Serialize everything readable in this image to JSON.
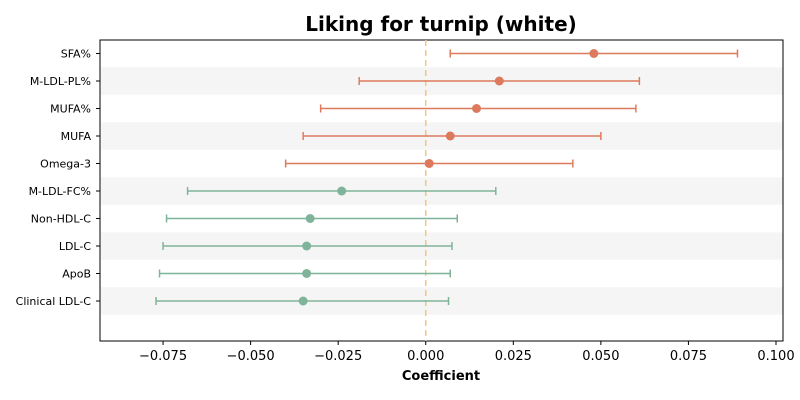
{
  "chart_data": {
    "type": "forest",
    "title": "Liking for turnip (white)",
    "xlabel": "Coefficient",
    "xlim": [
      -0.093,
      0.102
    ],
    "xticks": [
      -0.075,
      -0.05,
      -0.025,
      0.0,
      0.025,
      0.05,
      0.075,
      0.1
    ],
    "xtick_labels": [
      "−0.075",
      "−0.050",
      "−0.025",
      "0.000",
      "0.025",
      "0.050",
      "0.075",
      "0.100"
    ],
    "reference_line": 0.0,
    "colors": {
      "positive": "#dd7a5d",
      "negative": "#7fb49a",
      "reference": "#f4c77e",
      "band": "#f5f5f5"
    },
    "rows": [
      {
        "label": "SFA%",
        "estimate": 0.048,
        "lower": 0.007,
        "upper": 0.089
      },
      {
        "label": "M-LDL-PL%",
        "estimate": 0.021,
        "lower": -0.019,
        "upper": 0.061
      },
      {
        "label": "MUFA%",
        "estimate": 0.0145,
        "lower": -0.03,
        "upper": 0.06
      },
      {
        "label": "MUFA",
        "estimate": 0.007,
        "lower": -0.035,
        "upper": 0.05
      },
      {
        "label": "Omega-3",
        "estimate": 0.001,
        "lower": -0.04,
        "upper": 0.042
      },
      {
        "label": "M-LDL-FC%",
        "estimate": -0.024,
        "lower": -0.068,
        "upper": 0.02
      },
      {
        "label": "Non-HDL-C",
        "estimate": -0.033,
        "lower": -0.074,
        "upper": 0.009
      },
      {
        "label": "LDL-C",
        "estimate": -0.034,
        "lower": -0.075,
        "upper": 0.0075
      },
      {
        "label": "ApoB",
        "estimate": -0.034,
        "lower": -0.076,
        "upper": 0.007
      },
      {
        "label": "Clinical LDL-C",
        "estimate": -0.035,
        "lower": -0.077,
        "upper": 0.0065
      }
    ]
  }
}
